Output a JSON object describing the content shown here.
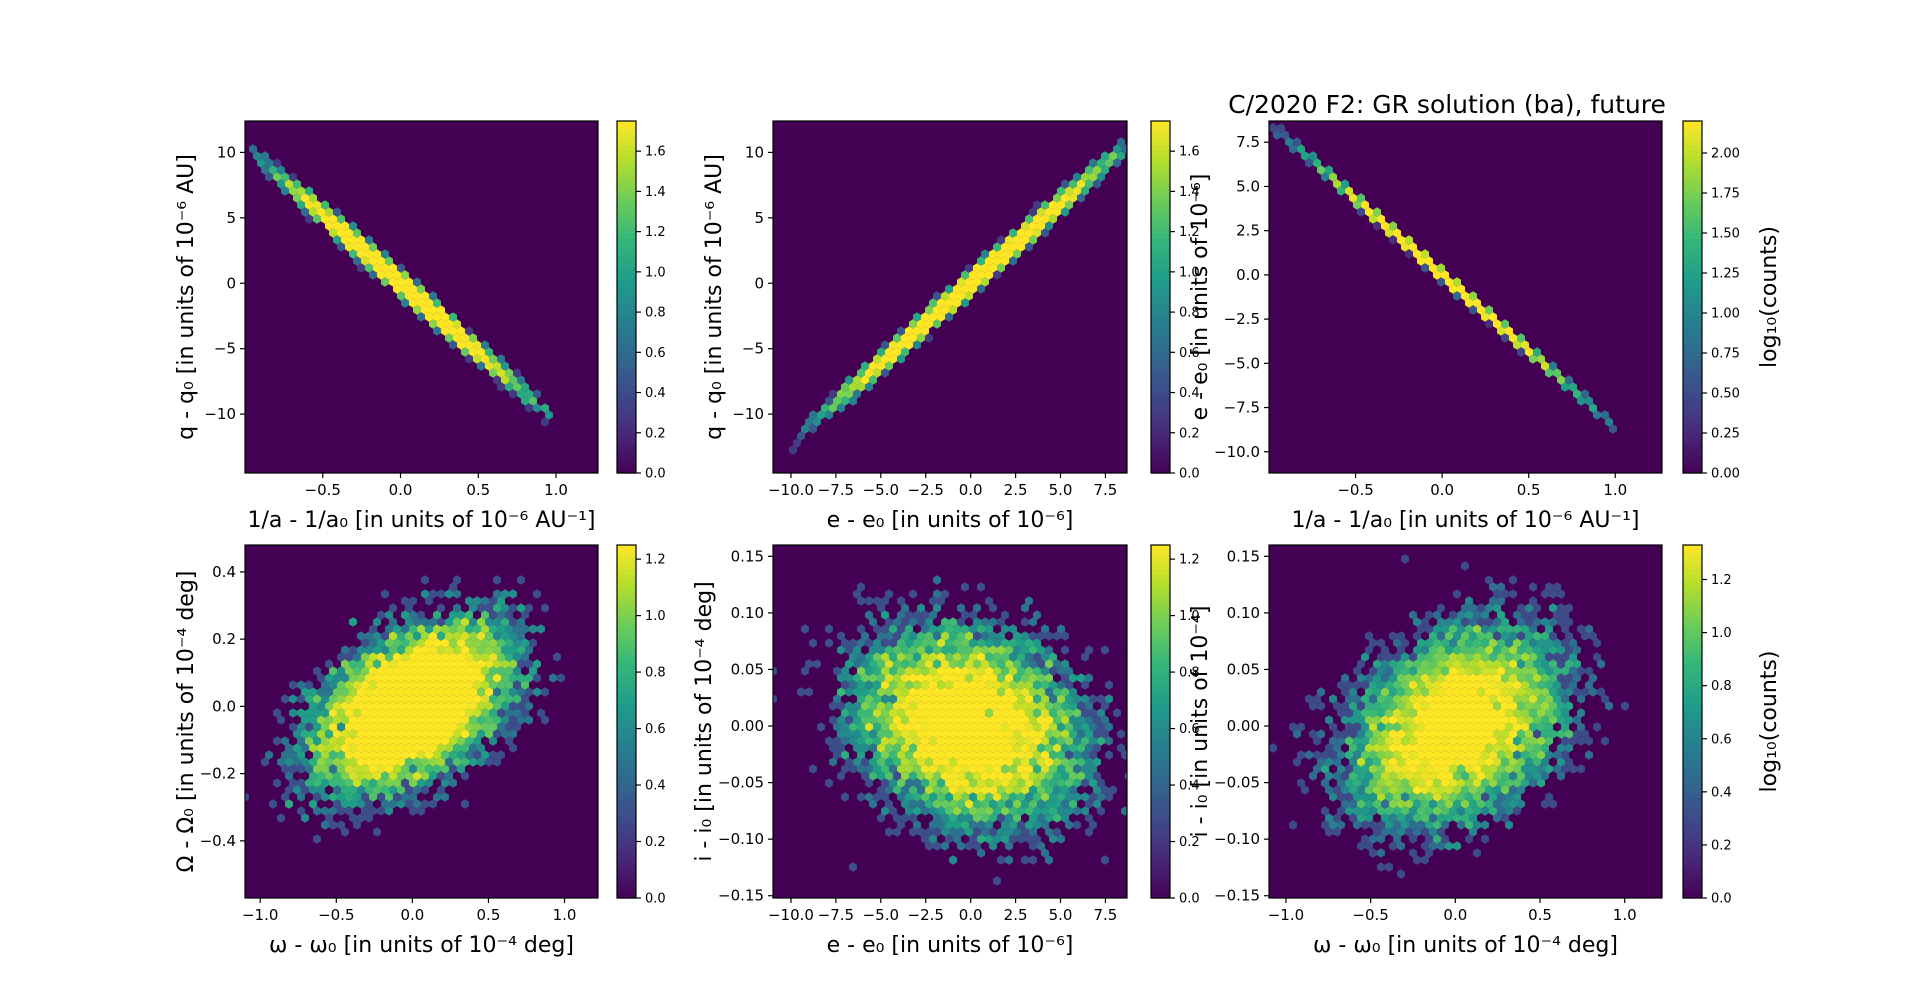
{
  "title": "C/2020 F2: GR solution (ba), future",
  "chart_data": [
    {
      "type": "hexbin",
      "xlabel": "1/a - 1/a₀ [in units of 10⁻⁶ AU⁻¹]",
      "ylabel": "q - q₀ [in units of 10⁻⁶ AU]",
      "xlim": [
        -1.0,
        1.27
      ],
      "ylim": [
        -14.5,
        12.4
      ],
      "xticks": [
        -0.5,
        0.0,
        0.5,
        1.0
      ],
      "xtick_labels": [
        "−0.5",
        "0.0",
        "0.5",
        "1.0"
      ],
      "yticks": [
        -10,
        -5,
        0,
        5,
        10
      ],
      "ytick_labels": [
        "−10",
        "−5",
        "0",
        "5",
        "10"
      ],
      "colorbar": {
        "label": "",
        "min": 0.0,
        "max": 1.75,
        "ticks": [
          "0.0",
          "0.2",
          "0.4",
          "0.6",
          "0.8",
          "1.0",
          "1.2",
          "1.4",
          "1.6"
        ],
        "tick_values": [
          0,
          0.2,
          0.4,
          0.6,
          0.8,
          1.0,
          1.2,
          1.4,
          1.6
        ]
      },
      "distribution": {
        "shape": "line",
        "center": [
          0.0,
          0.0
        ],
        "sx": 0.33,
        "sy": 0.35,
        "rho": 0,
        "slope": -10.5,
        "range": [
          -0.97,
          0.98
        ]
      }
    },
    {
      "type": "hexbin",
      "xlabel": "e - e₀ [in units of 10⁻⁶]",
      "ylabel": "q - q₀ [in units of 10⁻⁶ AU]",
      "xlim": [
        -11.0,
        8.7
      ],
      "ylim": [
        -14.5,
        12.4
      ],
      "xticks": [
        -10.0,
        -7.5,
        -5.0,
        -2.5,
        0.0,
        2.5,
        5.0,
        7.5
      ],
      "xtick_labels": [
        "−10.0",
        "−7.5",
        "−5.0",
        "−2.5",
        "0.0",
        "2.5",
        "5.0",
        "7.5"
      ],
      "yticks": [
        -10,
        -5,
        0,
        5,
        10
      ],
      "ytick_labels": [
        "−10",
        "−5",
        "0",
        "5",
        "10"
      ],
      "colorbar": {
        "label": "",
        "min": 0.0,
        "max": 1.75,
        "ticks": [
          "0.0",
          "0.2",
          "0.4",
          "0.6",
          "0.8",
          "1.0",
          "1.2",
          "1.4",
          "1.6"
        ],
        "tick_values": [
          0,
          0.2,
          0.4,
          0.6,
          0.8,
          1.0,
          1.2,
          1.4,
          1.6
        ]
      },
      "distribution": {
        "shape": "line",
        "center": [
          0.0,
          0.0
        ],
        "sx": 3.4,
        "sy": 0.35,
        "rho": 0,
        "slope": 1.22,
        "range": [
          -10.2,
          8.6
        ]
      }
    },
    {
      "type": "hexbin",
      "xlabel": "1/a - 1/a₀ [in units of 10⁻⁶ AU⁻¹]",
      "ylabel": "e - e₀ [in units of 10⁻⁶]",
      "xlim": [
        -1.0,
        1.27
      ],
      "ylim": [
        -11.2,
        8.7
      ],
      "xticks": [
        -0.5,
        0.0,
        0.5,
        1.0
      ],
      "xtick_labels": [
        "−0.5",
        "0.0",
        "0.5",
        "1.0"
      ],
      "yticks": [
        -10.0,
        -7.5,
        -5.0,
        -2.5,
        0.0,
        2.5,
        5.0,
        7.5
      ],
      "ytick_labels": [
        "−10.0",
        "−7.5",
        "−5.0",
        "−2.5",
        "0.0",
        "2.5",
        "5.0",
        "7.5"
      ],
      "colorbar": {
        "label": "log₁₀(counts)",
        "min": 0.0,
        "max": 2.2,
        "ticks": [
          "0.00",
          "0.25",
          "0.50",
          "0.75",
          "1.00",
          "1.25",
          "1.50",
          "1.75",
          "2.00"
        ],
        "tick_values": [
          0,
          0.25,
          0.5,
          0.75,
          1.0,
          1.25,
          1.5,
          1.75,
          2.0
        ]
      },
      "distribution": {
        "shape": "line",
        "center": [
          0.0,
          0.0
        ],
        "sx": 0.33,
        "sy": 0.05,
        "rho": 0,
        "slope": -8.6,
        "range": [
          -0.97,
          1.0
        ]
      }
    },
    {
      "type": "hexbin",
      "xlabel": "ω - ω₀ [in units of 10⁻⁴ deg]",
      "ylabel": "Ω - Ω₀ [in units of 10⁻⁴ deg]",
      "xlim": [
        -1.1,
        1.22
      ],
      "ylim": [
        -0.57,
        0.48
      ],
      "xticks": [
        -1.0,
        -0.5,
        0.0,
        0.5,
        1.0
      ],
      "xtick_labels": [
        "−1.0",
        "−0.5",
        "0.0",
        "0.5",
        "1.0"
      ],
      "yticks": [
        -0.4,
        -0.2,
        0.0,
        0.2,
        0.4
      ],
      "ytick_labels": [
        "−0.4",
        "−0.2",
        "0.0",
        "0.2",
        "0.4"
      ],
      "colorbar": {
        "label": "",
        "min": 0.0,
        "max": 1.25,
        "ticks": [
          "0.0",
          "0.2",
          "0.4",
          "0.6",
          "0.8",
          "1.0",
          "1.2"
        ],
        "tick_values": [
          0,
          0.2,
          0.4,
          0.6,
          0.8,
          1.0,
          1.2
        ]
      },
      "distribution": {
        "shape": "blob",
        "center": [
          0.0,
          0.0
        ],
        "sx": 0.33,
        "sy": 0.13,
        "rho": 0.45
      }
    },
    {
      "type": "hexbin",
      "xlabel": "e - e₀ [in units of 10⁻⁶]",
      "ylabel": "i - i₀ [in units of 10⁻⁴ deg]",
      "xlim": [
        -11.0,
        8.7
      ],
      "ylim": [
        -0.152,
        0.16
      ],
      "xticks": [
        -10.0,
        -7.5,
        -5.0,
        -2.5,
        0.0,
        2.5,
        5.0,
        7.5
      ],
      "xtick_labels": [
        "−10.0",
        "−7.5",
        "−5.0",
        "−2.5",
        "0.0",
        "2.5",
        "5.0",
        "7.5"
      ],
      "yticks": [
        -0.15,
        -0.1,
        -0.05,
        0.0,
        0.05,
        0.1,
        0.15
      ],
      "ytick_labels": [
        "−0.15",
        "−0.10",
        "−0.05",
        "0.00",
        "0.05",
        "0.10",
        "0.15"
      ],
      "colorbar": {
        "label": "",
        "min": 0.0,
        "max": 1.25,
        "ticks": [
          "0.0",
          "0.2",
          "0.4",
          "0.6",
          "0.8",
          "1.0",
          "1.2"
        ],
        "tick_values": [
          0,
          0.2,
          0.4,
          0.6,
          0.8,
          1.0,
          1.2
        ]
      },
      "distribution": {
        "shape": "blob",
        "center": [
          0.0,
          0.0
        ],
        "sx": 3.3,
        "sy": 0.045,
        "rho": -0.2
      }
    },
    {
      "type": "hexbin",
      "xlabel": "ω - ω₀ [in units of 10⁻⁴ deg]",
      "ylabel": "i - i₀ [in units of 10⁻⁴]",
      "xlim": [
        -1.1,
        1.22
      ],
      "ylim": [
        -0.152,
        0.16
      ],
      "xticks": [
        -1.0,
        -0.5,
        0.0,
        0.5,
        1.0
      ],
      "xtick_labels": [
        "−1.0",
        "−0.5",
        "0.0",
        "0.5",
        "1.0"
      ],
      "yticks": [
        -0.15,
        -0.1,
        -0.05,
        0.0,
        0.05,
        0.1,
        0.15
      ],
      "ytick_labels": [
        "−0.15",
        "−0.10",
        "−0.05",
        "0.00",
        "0.05",
        "0.10",
        "0.15"
      ],
      "colorbar": {
        "label": "log₁₀(counts)",
        "min": 0.0,
        "max": 1.33,
        "ticks": [
          "0.0",
          "0.2",
          "0.4",
          "0.6",
          "0.8",
          "1.0",
          "1.2"
        ],
        "tick_values": [
          0,
          0.2,
          0.4,
          0.6,
          0.8,
          1.0,
          1.2
        ]
      },
      "distribution": {
        "shape": "blob",
        "center": [
          0.0,
          0.0
        ],
        "sx": 0.33,
        "sy": 0.045,
        "rho": 0.3
      }
    }
  ]
}
